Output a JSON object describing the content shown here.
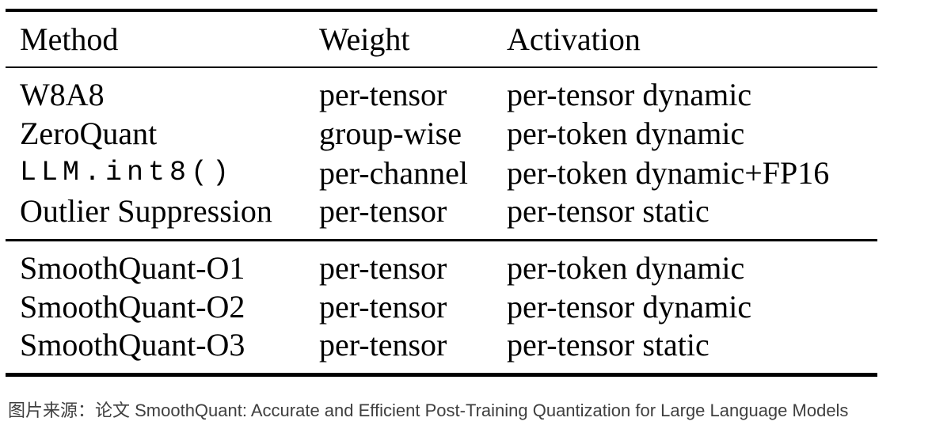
{
  "table": {
    "columns": [
      "Method",
      "Weight",
      "Activation"
    ],
    "groups": [
      {
        "rows": [
          {
            "method": "W8A8",
            "weight": "per-tensor",
            "activation": "per-tensor dynamic",
            "mono": false
          },
          {
            "method": "ZeroQuant",
            "weight": "group-wise",
            "activation": "per-token dynamic",
            "mono": false
          },
          {
            "method": "LLM.int8()",
            "weight": "per-channel",
            "activation": "per-token dynamic+FP16",
            "mono": true
          },
          {
            "method": "Outlier Suppression",
            "weight": "per-tensor",
            "activation": "per-tensor static",
            "mono": false
          }
        ]
      },
      {
        "rows": [
          {
            "method": "SmoothQuant-O1",
            "weight": "per-tensor",
            "activation": "per-token dynamic",
            "mono": false
          },
          {
            "method": "SmoothQuant-O2",
            "weight": "per-tensor",
            "activation": "per-tensor dynamic",
            "mono": false
          },
          {
            "method": "SmoothQuant-O3",
            "weight": "per-tensor",
            "activation": "per-tensor static",
            "mono": false
          }
        ]
      }
    ]
  },
  "caption": {
    "text": "图片来源：论文 SmoothQuant: Accurate and Efficient Post-Training Quantization for Large Language Models"
  },
  "colors": {
    "background": "#ffffff",
    "text": "#000000",
    "rule": "#000000",
    "caption": "#3f3f3f"
  }
}
